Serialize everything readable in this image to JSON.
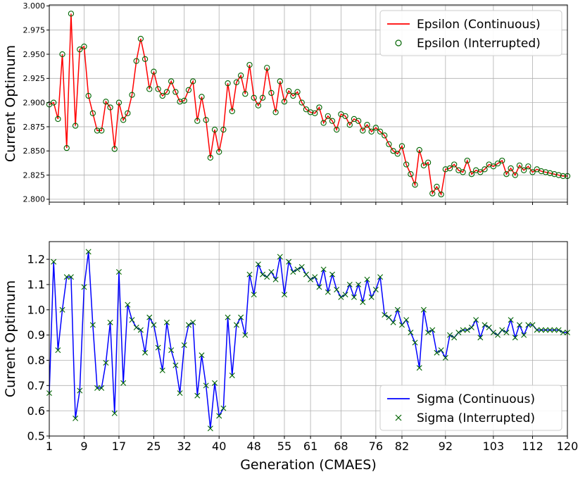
{
  "chart_data": [
    {
      "type": "line",
      "ylabel": "Current Optimum",
      "xlim": [
        1,
        120
      ],
      "ylim": [
        2.797,
        3.001
      ],
      "x_ticks": [
        1,
        9,
        17,
        25,
        32,
        40,
        48,
        55,
        61,
        68,
        76,
        82,
        92,
        103,
        112,
        120
      ],
      "y_ticks": [
        2.8,
        2.825,
        2.85,
        2.875,
        2.9,
        2.925,
        2.95,
        2.975,
        3.0
      ],
      "y_tick_labels": [
        "2.800",
        "2.825",
        "2.850",
        "2.875",
        "2.900",
        "2.925",
        "2.950",
        "2.975",
        "3.000"
      ],
      "grid": true,
      "legend_position": "top-right",
      "series": [
        {
          "name": "Epsilon (Continuous)",
          "style": "line",
          "color": "#ff0000"
        },
        {
          "name": "Epsilon (Interrupted)",
          "style": "circle-marker",
          "color": "#006400"
        }
      ],
      "values": [
        2.898,
        2.9,
        2.883,
        2.95,
        2.853,
        2.992,
        2.876,
        2.955,
        2.958,
        2.907,
        2.889,
        2.871,
        2.871,
        2.901,
        2.895,
        2.852,
        2.9,
        2.882,
        2.889,
        2.908,
        2.943,
        2.966,
        2.945,
        2.914,
        2.932,
        2.914,
        2.907,
        2.911,
        2.922,
        2.911,
        2.901,
        2.902,
        2.913,
        2.922,
        2.881,
        2.906,
        2.882,
        2.843,
        2.872,
        2.849,
        2.872,
        2.92,
        2.891,
        2.921,
        2.928,
        2.909,
        2.939,
        2.905,
        2.897,
        2.905,
        2.936,
        2.91,
        2.89,
        2.922,
        2.901,
        2.912,
        2.907,
        2.911,
        2.9,
        2.893,
        2.89,
        2.889,
        2.895,
        2.879,
        2.886,
        2.881,
        2.872,
        2.888,
        2.886,
        2.877,
        2.883,
        2.881,
        2.871,
        2.877,
        2.87,
        2.874,
        2.87,
        2.866,
        2.857,
        2.85,
        2.847,
        2.855,
        2.836,
        2.826,
        2.815,
        2.851,
        2.835,
        2.838,
        2.806,
        2.813,
        2.805,
        2.831,
        2.832,
        2.836,
        2.83,
        2.828,
        2.84,
        2.826,
        2.83,
        2.828,
        2.831,
        2.836,
        2.834,
        2.837,
        2.84,
        2.826,
        2.832,
        2.825,
        2.835,
        2.83,
        2.834,
        2.828,
        2.831,
        2.829,
        2.828,
        2.827,
        2.826,
        2.825,
        2.824,
        2.824
      ]
    },
    {
      "type": "line",
      "xlabel": "Generation (CMAES)",
      "ylabel": "Current Optimum",
      "xlim": [
        1,
        120
      ],
      "ylim": [
        0.5,
        1.27
      ],
      "x_ticks": [
        1,
        9,
        17,
        25,
        32,
        40,
        48,
        55,
        61,
        68,
        76,
        82,
        92,
        103,
        112,
        120
      ],
      "y_ticks": [
        0.5,
        0.6,
        0.7,
        0.8,
        0.9,
        1.0,
        1.1,
        1.2
      ],
      "y_tick_labels": [
        "0.5",
        "0.6",
        "0.7",
        "0.8",
        "0.9",
        "1.0",
        "1.1",
        "1.2"
      ],
      "grid": true,
      "legend_position": "bottom-right",
      "series": [
        {
          "name": "Sigma (Continuous)",
          "style": "line",
          "color": "#0000ff"
        },
        {
          "name": "Sigma (Interrupted)",
          "style": "x-marker",
          "color": "#006400"
        }
      ],
      "values": [
        0.67,
        1.19,
        0.84,
        1.0,
        1.13,
        1.13,
        0.57,
        0.68,
        1.09,
        1.23,
        0.94,
        0.69,
        0.69,
        0.79,
        0.95,
        0.59,
        1.15,
        0.71,
        1.02,
        0.96,
        0.93,
        0.92,
        0.83,
        0.97,
        0.94,
        0.85,
        0.76,
        0.95,
        0.84,
        0.78,
        0.67,
        0.86,
        0.94,
        0.95,
        0.66,
        0.82,
        0.7,
        0.53,
        0.71,
        0.58,
        0.61,
        0.97,
        0.74,
        0.94,
        0.97,
        0.9,
        1.14,
        1.06,
        1.18,
        1.14,
        1.13,
        1.15,
        1.12,
        1.21,
        1.06,
        1.19,
        1.15,
        1.16,
        1.17,
        1.14,
        1.12,
        1.13,
        1.09,
        1.16,
        1.07,
        1.14,
        1.08,
        1.05,
        1.06,
        1.1,
        1.05,
        1.1,
        1.03,
        1.12,
        1.05,
        1.08,
        1.13,
        0.98,
        0.97,
        0.95,
        1.0,
        0.94,
        0.96,
        0.91,
        0.87,
        0.77,
        1.0,
        0.91,
        0.92,
        0.83,
        0.84,
        0.81,
        0.9,
        0.89,
        0.91,
        0.92,
        0.92,
        0.93,
        0.96,
        0.89,
        0.94,
        0.93,
        0.91,
        0.9,
        0.92,
        0.91,
        0.96,
        0.89,
        0.94,
        0.9,
        0.94,
        0.94,
        0.92,
        0.92,
        0.92,
        0.92,
        0.92,
        0.92,
        0.91,
        0.91
      ]
    }
  ]
}
